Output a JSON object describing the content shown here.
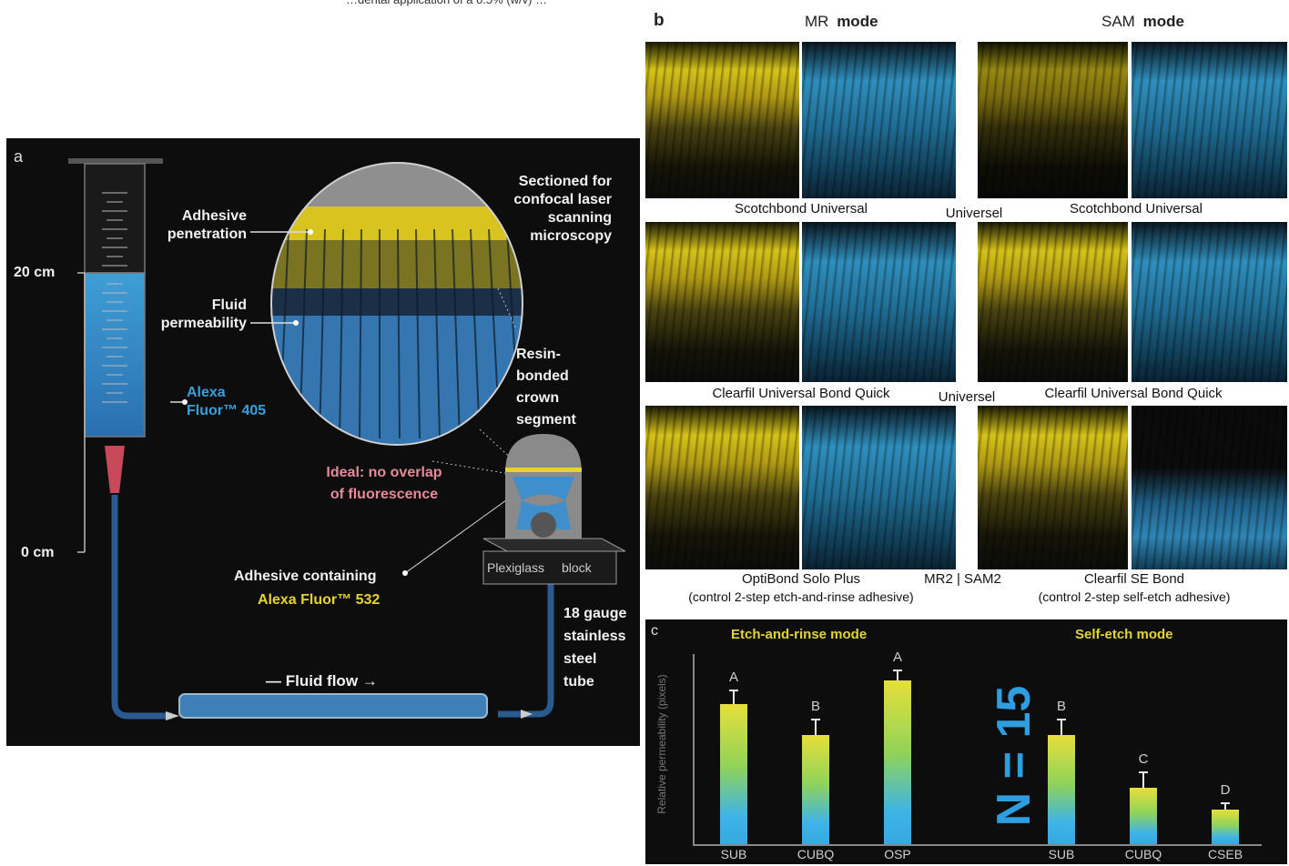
{
  "top_caption": "…dental application of a 0.5% (w/v) …",
  "panel_a": {
    "letter": "a",
    "labels": {
      "sectioned": "Sectioned for\nconfocal laser\nscanning\nmicroscopy",
      "adhesive_penetration": "Adhesive\npenetration",
      "fluid_permeability": "Fluid\npermeability",
      "resin_bonded": "Resin-\nbonded\ncrown\nsegment",
      "alexa_405": "Alexa\nFluor™ 405",
      "ideal": "Ideal: no overlap\nof fluorescence",
      "adhesive_containing": "Adhesive containing",
      "alexa_532": "Alexa Fluor™ 532",
      "plexiglass": "Plexiglass",
      "block": "block",
      "gauge": "18 gauge\nstainless\nsteel\ntube",
      "fluid_flow": "— Fluid flow →",
      "cm20": "20 cm",
      "cm0": "0 cm"
    },
    "colors": {
      "blue": "#3aa0dc",
      "yellow": "#e7d42a",
      "pink": "#e58a9a"
    }
  },
  "panel_b": {
    "letter": "b",
    "mode_mr": "MR",
    "mode_sam": "SAM",
    "mode_word": "mode",
    "captions": {
      "row1_left": "Scotchbond Universal",
      "row1_mid": "Universel",
      "row1_right": "Scotchbond Universal",
      "row2_left": "Clearfil Universal Bond Quick",
      "row2_mid": "Universel",
      "row2_right": "Clearfil Universal Bond Quick",
      "row3_left": "OptiBond Solo Plus",
      "row3_left_sub": "(control 2-step etch-and-rinse adhesive)",
      "row3_mid": "MR2 | SAM2",
      "row3_right": "Clearfil SE Bond",
      "row3_right_sub": "(control 2-step self-etch adhesive)"
    }
  },
  "panel_c": {
    "letter": "c",
    "title_left": "Etch-and-rinse mode",
    "title_right": "Self-etch mode",
    "ylabel": "Relative permeability (pixels)",
    "overlay": "N = 15",
    "chart_data": {
      "type": "bar",
      "categories": [
        "SUB",
        "CUBQ",
        "OSP",
        "SUB",
        "CUBQ",
        "CSEB"
      ],
      "groups": [
        "Etch-and-rinse mode",
        "Etch-and-rinse mode",
        "Etch-and-rinse mode",
        "Self-etch mode",
        "Self-etch mode",
        "Self-etch mode"
      ],
      "values": [
        0.77,
        0.6,
        0.9,
        0.6,
        0.31,
        0.19
      ],
      "errors": [
        0.08,
        0.09,
        0.06,
        0.09,
        0.09,
        0.04
      ],
      "letters": [
        "A",
        "B",
        "A",
        "B",
        "C",
        "D"
      ],
      "ylim": [
        0,
        1
      ],
      "xlabel": "",
      "ylabel": "Relative permeability (pixels)",
      "grid": false
    }
  }
}
